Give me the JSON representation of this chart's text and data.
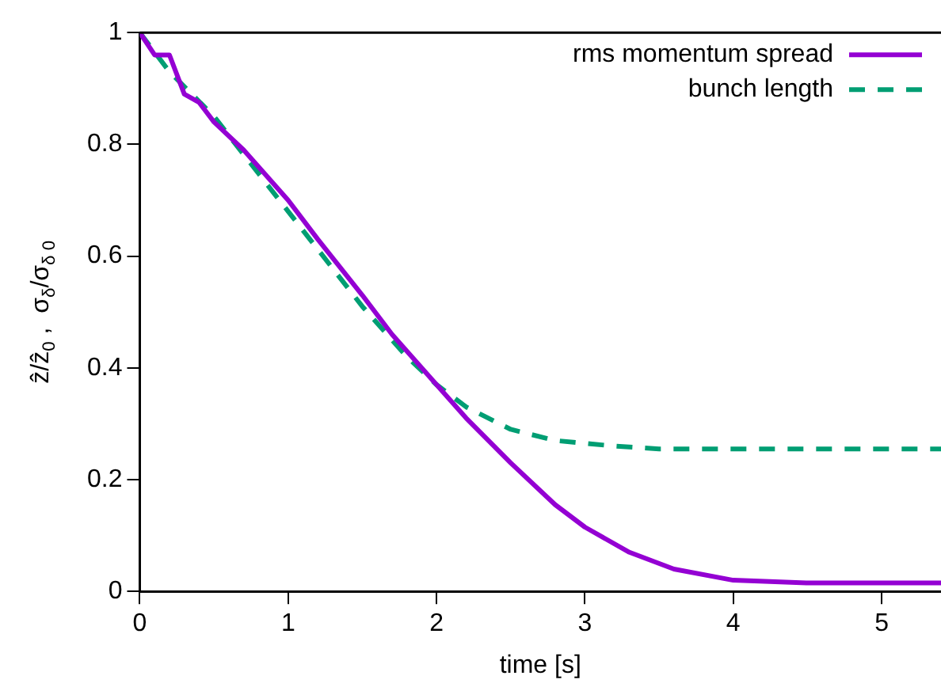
{
  "chart_data": {
    "type": "line",
    "xlabel": "time [s]",
    "ylabel": "ẑ/ẑ$_{0}$ ,  σ$_{δ}$/σ$_{δ 0}$",
    "xlim": [
      0,
      5.4
    ],
    "xticks": [
      0,
      1,
      2,
      3,
      4,
      5
    ],
    "ylim": [
      0,
      1
    ],
    "yticks": [
      0,
      0.2,
      0.4,
      0.6,
      0.8,
      1
    ],
    "grid": false,
    "legend": "top right",
    "marker": "none",
    "series": [
      {
        "name": "rms momentum spread",
        "color": "#9400d3",
        "line_style": "solid",
        "x": [
          0,
          0.1,
          0.2,
          0.3,
          0.4,
          0.5,
          0.7,
          1.0,
          1.2,
          1.5,
          1.7,
          2.0,
          2.2,
          2.5,
          2.8,
          3.0,
          3.3,
          3.6,
          4.0,
          4.5,
          5.4
        ],
        "values": [
          1,
          0.96,
          0.96,
          0.89,
          0.875,
          0.84,
          0.79,
          0.7,
          0.63,
          0.53,
          0.46,
          0.37,
          0.31,
          0.23,
          0.155,
          0.115,
          0.07,
          0.04,
          0.02,
          0.015,
          0.015
        ]
      },
      {
        "name": "bunch length",
        "color": "#009e73",
        "line_style": "dashed",
        "x": [
          0,
          0.2,
          0.5,
          1.0,
          1.5,
          1.8,
          2.0,
          2.2,
          2.5,
          2.8,
          3.2,
          3.5,
          4.0,
          5.4
        ],
        "values": [
          1,
          0.93,
          0.85,
          0.68,
          0.51,
          0.42,
          0.37,
          0.33,
          0.29,
          0.27,
          0.26,
          0.255,
          0.255,
          0.255
        ]
      }
    ]
  }
}
